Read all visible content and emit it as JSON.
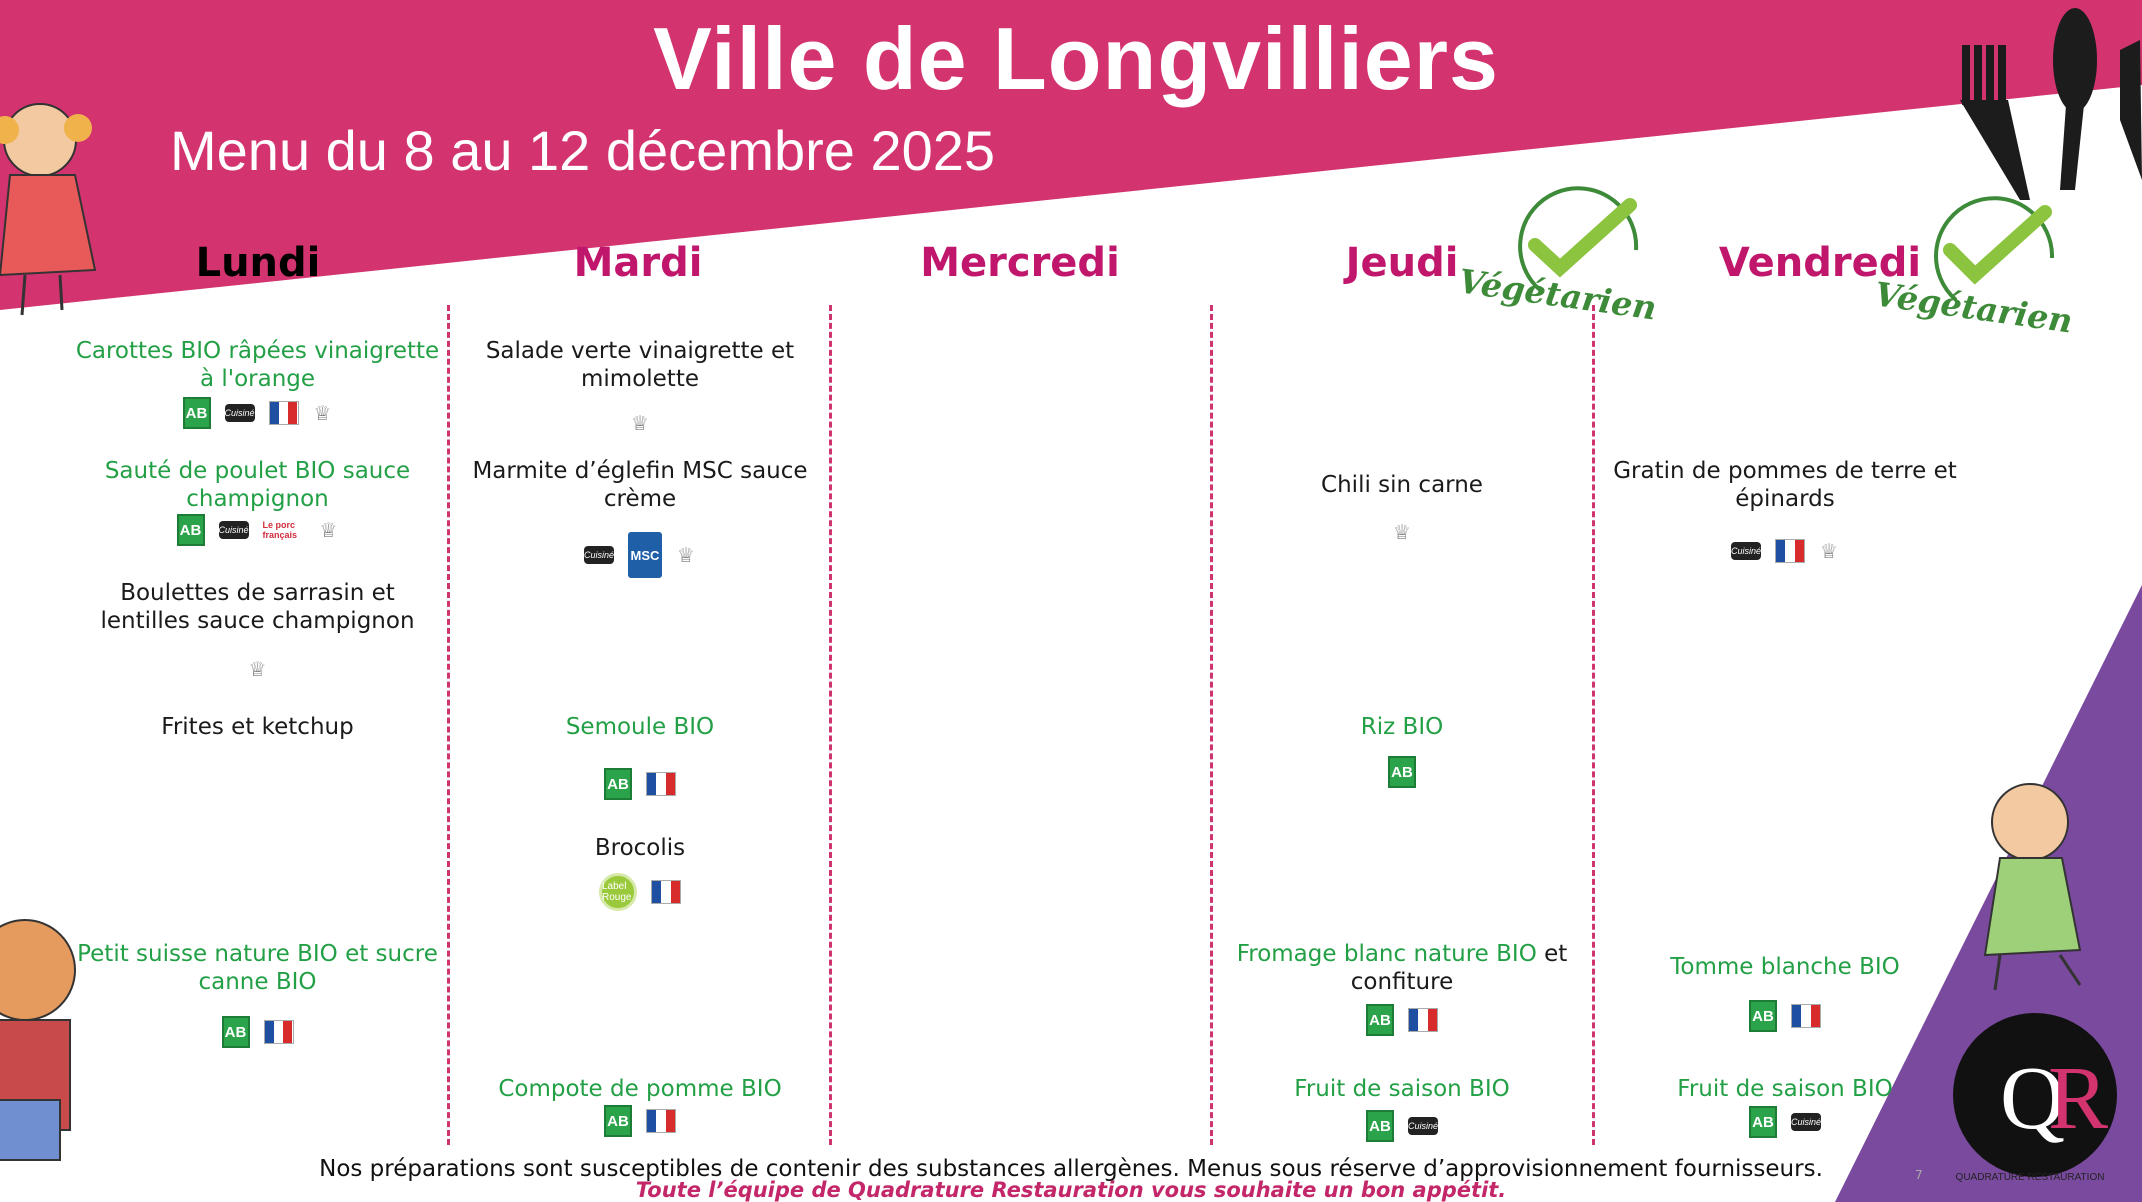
{
  "header": {
    "title": "Ville de Longvilliers",
    "subtitle": "Menu du 8 au 12 décembre 2025"
  },
  "days": [
    {
      "label": "Lundi",
      "color": "#ffffff"
    },
    {
      "label": "Mardi",
      "color": "#c0176d"
    },
    {
      "label": "Mercredi",
      "color": "#c0176d"
    },
    {
      "label": "Jeudi",
      "color": "#c0176d"
    },
    {
      "label": "Vendredi",
      "color": "#c0176d"
    }
  ],
  "badges": {
    "vegetarian_label": "Végétarien"
  },
  "monday": {
    "starter": "Carottes BIO râpées vinaigrette à l'orange",
    "main": "Sauté de poulet BIO sauce champignon",
    "main_veg": "Boulettes de sarrasin et lentilles sauce champignon",
    "side": "Frites et ketchup",
    "dairy": "Petit suisse nature BIO et sucre canne BIO"
  },
  "tuesday": {
    "starter": "Salade verte vinaigrette et mimolette",
    "main": "Marmite d’églefin MSC sauce crème",
    "side1": "Semoule BIO",
    "side2": "Brocolis",
    "dessert": "Compote de pomme BIO"
  },
  "thursday": {
    "main": "Chili sin carne",
    "side": "Riz BIO",
    "dairy_bio": "Fromage blanc nature BIO",
    "dairy_rest": " et confiture",
    "dessert": "Fruit de saison BIO"
  },
  "friday": {
    "main": "Gratin de pommes de terre et épinards",
    "dairy": "Tomme blanche BIO",
    "dessert": "Fruit de saison BIO"
  },
  "icons": {
    "ab": "AB",
    "msc": "MSC",
    "cuisine": "Cuisiné",
    "lr": "Label Rouge",
    "viande": "Le porc français",
    "chef": "♕"
  },
  "footer": {
    "line1": "Nos préparations sont susceptibles de contenir des substances allergènes. Menus sous réserve d’approvisionnement fournisseurs.",
    "line2": "Toute l’équipe de Quadrature Restauration vous souhaite un bon appétit.",
    "page": "7",
    "company": "QUADRATURE RESTAURATION"
  },
  "colors": {
    "pink": "#d3336f",
    "purple": "#7a4a9f",
    "green": "#23a046"
  }
}
